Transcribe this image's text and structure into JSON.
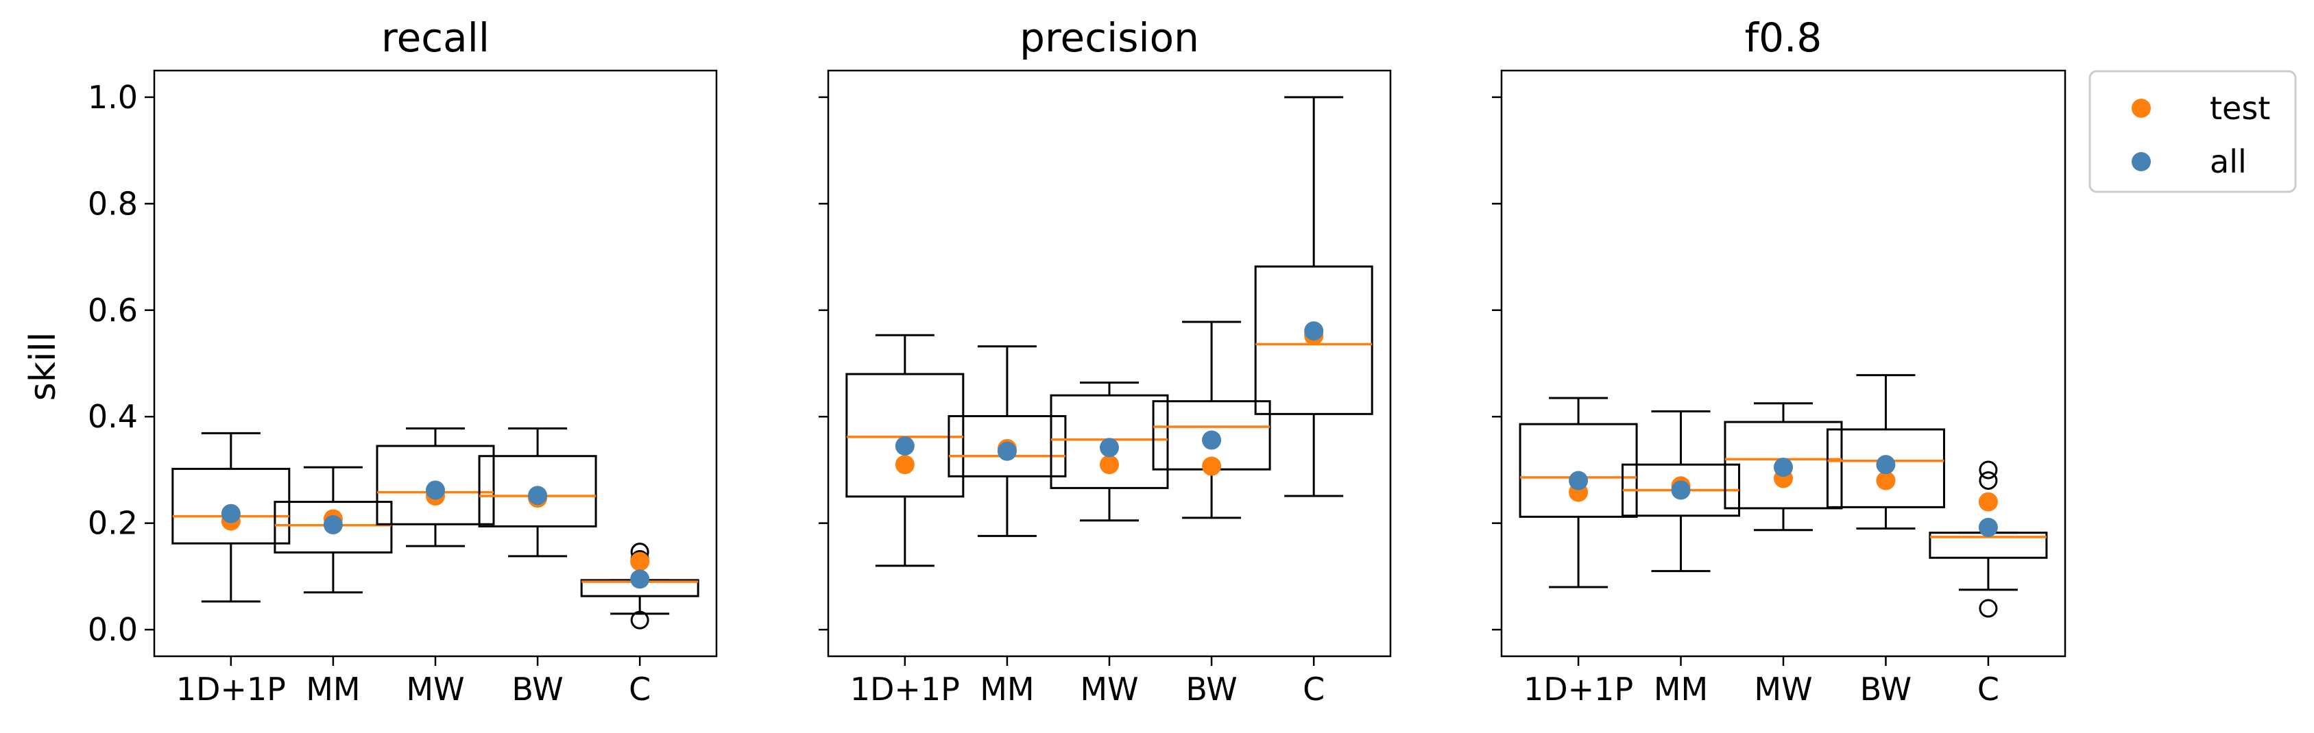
{
  "chart_data": [
    {
      "type": "box",
      "title": "recall",
      "ylabel": "skill",
      "categories": [
        "1D+1P",
        "MM",
        "MW",
        "BW",
        "C"
      ],
      "ylim": [
        -0.05,
        1.05
      ],
      "yticks": [
        "0.0",
        "0.2",
        "0.4",
        "0.6",
        "0.8",
        "1.0"
      ],
      "boxes": [
        {
          "whisker_low": 0.053,
          "q1": 0.162,
          "median": 0.213,
          "q3": 0.302,
          "whisker_high": 0.369,
          "fliers": []
        },
        {
          "whisker_low": 0.07,
          "q1": 0.145,
          "median": 0.196,
          "q3": 0.24,
          "whisker_high": 0.305,
          "fliers": []
        },
        {
          "whisker_low": 0.157,
          "q1": 0.198,
          "median": 0.258,
          "q3": 0.345,
          "whisker_high": 0.378,
          "fliers": []
        },
        {
          "whisker_low": 0.138,
          "q1": 0.194,
          "median": 0.251,
          "q3": 0.326,
          "whisker_high": 0.378,
          "fliers": []
        },
        {
          "whisker_low": 0.03,
          "q1": 0.063,
          "median": 0.09,
          "q3": 0.093,
          "whisker_high": 0.093,
          "fliers": [
            0.018,
            0.132,
            0.146
          ]
        }
      ],
      "series": [
        {
          "name": "test",
          "values": [
            0.204,
            0.208,
            0.251,
            0.247,
            0.128
          ]
        },
        {
          "name": "all",
          "values": [
            0.218,
            0.197,
            0.262,
            0.252,
            0.095
          ]
        }
      ]
    },
    {
      "type": "box",
      "title": "precision",
      "categories": [
        "1D+1P",
        "MM",
        "MW",
        "BW",
        "C"
      ],
      "ylim": [
        -0.05,
        1.05
      ],
      "boxes": [
        {
          "whisker_low": 0.12,
          "q1": 0.25,
          "median": 0.362,
          "q3": 0.48,
          "whisker_high": 0.553,
          "fliers": []
        },
        {
          "whisker_low": 0.176,
          "q1": 0.288,
          "median": 0.326,
          "q3": 0.401,
          "whisker_high": 0.532,
          "fliers": []
        },
        {
          "whisker_low": 0.205,
          "q1": 0.266,
          "median": 0.357,
          "q3": 0.44,
          "whisker_high": 0.464,
          "fliers": []
        },
        {
          "whisker_low": 0.21,
          "q1": 0.301,
          "median": 0.381,
          "q3": 0.429,
          "whisker_high": 0.578,
          "fliers": []
        },
        {
          "whisker_low": 0.251,
          "q1": 0.405,
          "median": 0.536,
          "q3": 0.682,
          "whisker_high": 1.0,
          "fliers": []
        }
      ],
      "series": [
        {
          "name": "test",
          "values": [
            0.31,
            0.34,
            0.31,
            0.307,
            0.552
          ]
        },
        {
          "name": "all",
          "values": [
            0.345,
            0.335,
            0.342,
            0.356,
            0.561
          ]
        }
      ]
    },
    {
      "type": "box",
      "title": "f0.8",
      "categories": [
        "1D+1P",
        "MM",
        "MW",
        "BW",
        "C"
      ],
      "ylim": [
        -0.05,
        1.05
      ],
      "boxes": [
        {
          "whisker_low": 0.08,
          "q1": 0.212,
          "median": 0.286,
          "q3": 0.386,
          "whisker_high": 0.435,
          "fliers": []
        },
        {
          "whisker_low": 0.11,
          "q1": 0.214,
          "median": 0.262,
          "q3": 0.31,
          "whisker_high": 0.41,
          "fliers": []
        },
        {
          "whisker_low": 0.187,
          "q1": 0.228,
          "median": 0.32,
          "q3": 0.39,
          "whisker_high": 0.425,
          "fliers": []
        },
        {
          "whisker_low": 0.19,
          "q1": 0.23,
          "median": 0.317,
          "q3": 0.376,
          "whisker_high": 0.478,
          "fliers": []
        },
        {
          "whisker_low": 0.075,
          "q1": 0.135,
          "median": 0.174,
          "q3": 0.182,
          "whisker_high": 0.182,
          "fliers": [
            0.04,
            0.28,
            0.3
          ]
        }
      ],
      "series": [
        {
          "name": "test",
          "values": [
            0.258,
            0.27,
            0.284,
            0.28,
            0.24
          ]
        },
        {
          "name": "all",
          "values": [
            0.28,
            0.262,
            0.305,
            0.31,
            0.192
          ]
        }
      ]
    }
  ],
  "legend": {
    "placement": "outside-upper-right",
    "entries": [
      {
        "label": "test",
        "color": "#ff7f0e"
      },
      {
        "label": "all",
        "color": "#4682b4"
      }
    ]
  },
  "colors": {
    "test": "#ff7f0e",
    "all": "#4682b4",
    "median": "#ff7f0e",
    "box": "#000000"
  }
}
